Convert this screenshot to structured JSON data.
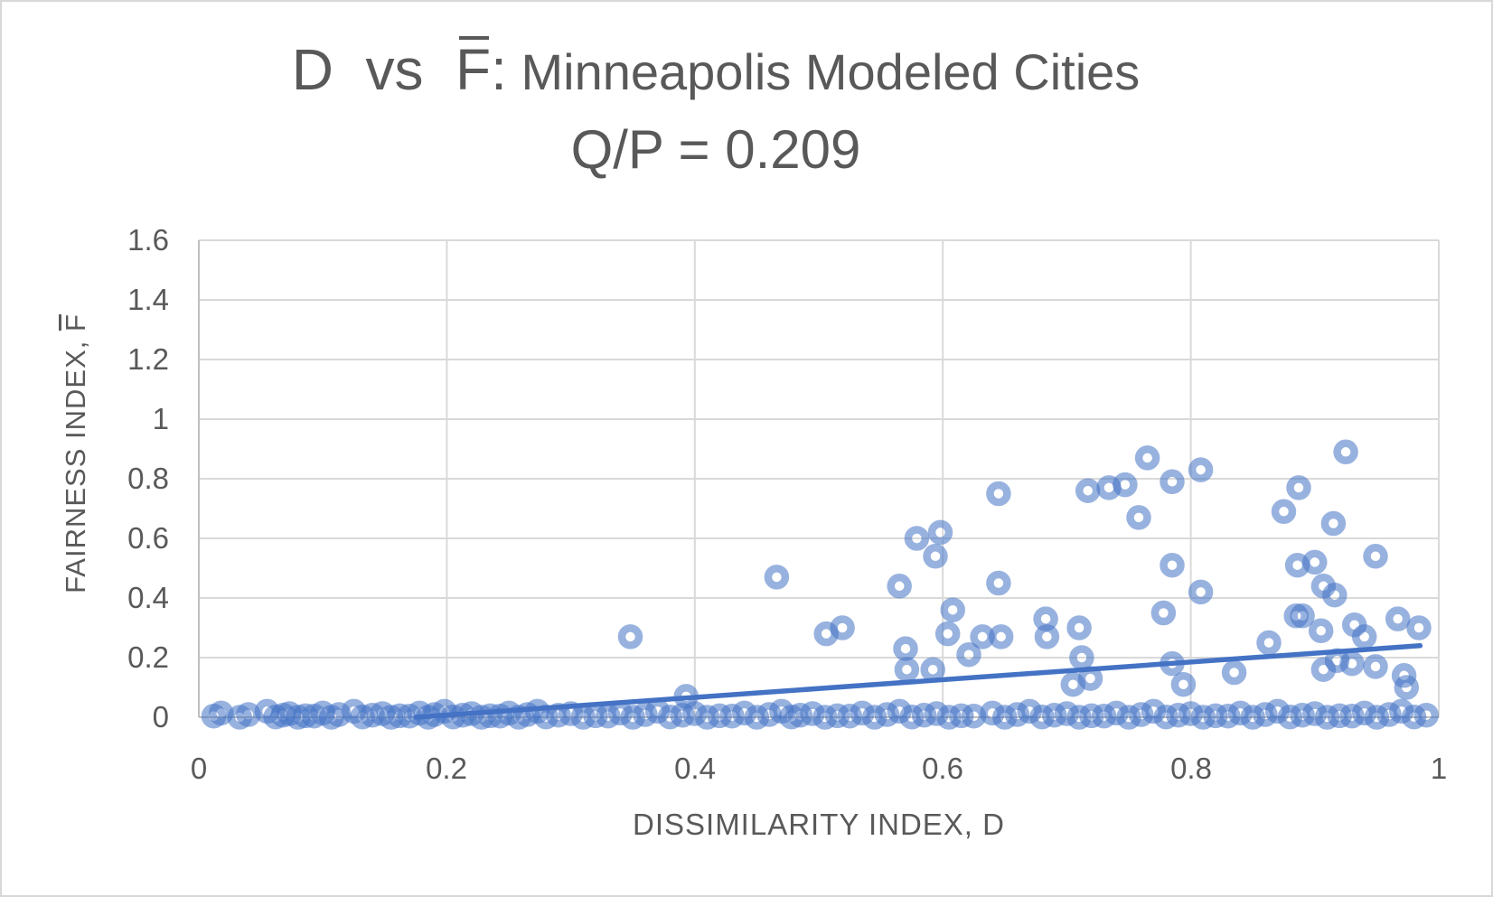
{
  "window": {
    "background": "#ffffff",
    "border_color": "#d8d8d8",
    "text_color": "#595959"
  },
  "title": {
    "line1_main": "D  vs  ",
    "line1_fbar": "F",
    "line1_colon": ":",
    "line1_rest": " Minneapolis Modeled Cities",
    "line2": "Q/P = 0.209"
  },
  "axes": {
    "x_title": "DISSIMILARITY INDEX, D",
    "y_title_prefix": "FAIRNESS INDEX, ",
    "y_title_fbar": "F",
    "x_tick_labels": [
      "0",
      "0.2",
      "0.4",
      "0.6",
      "0.8",
      "1"
    ],
    "y_tick_labels": [
      "1.6",
      "1.4",
      "1.2",
      "1",
      "0.8",
      "0.6",
      "0.4",
      "0.2",
      "0"
    ]
  },
  "chart_data": {
    "type": "scatter",
    "title": "D vs F̄: Minneapolis Modeled Cities",
    "subtitle": "Q/P = 0.209",
    "xlabel": "DISSIMILARITY INDEX, D",
    "ylabel": "FAIRNESS INDEX, F̄",
    "xlim": [
      0,
      1
    ],
    "ylim": [
      0,
      1.6
    ],
    "x_ticks": [
      0,
      0.2,
      0.4,
      0.6,
      0.8,
      1
    ],
    "y_ticks": [
      0,
      0.2,
      0.4,
      0.6,
      0.8,
      1,
      1.2,
      1.4,
      1.6
    ],
    "grid": true,
    "legend": false,
    "gridline_color": "#D9D9D9",
    "axis_line_color": "#BFBFBF",
    "marker": {
      "shape": "open-circle",
      "color": "#4472C4",
      "opacity": 0.55
    },
    "points": [
      [
        0.348,
        0.27
      ],
      [
        0.393,
        0.07
      ],
      [
        0.466,
        0.47
      ],
      [
        0.506,
        0.28
      ],
      [
        0.519,
        0.3
      ],
      [
        0.565,
        0.44
      ],
      [
        0.57,
        0.23
      ],
      [
        0.571,
        0.16
      ],
      [
        0.579,
        0.6
      ],
      [
        0.592,
        0.16
      ],
      [
        0.594,
        0.54
      ],
      [
        0.598,
        0.62
      ],
      [
        0.604,
        0.28
      ],
      [
        0.608,
        0.36
      ],
      [
        0.621,
        0.21
      ],
      [
        0.632,
        0.27
      ],
      [
        0.645,
        0.45
      ],
      [
        0.645,
        0.75
      ],
      [
        0.647,
        0.27
      ],
      [
        0.683,
        0.33
      ],
      [
        0.684,
        0.27
      ],
      [
        0.705,
        0.11
      ],
      [
        0.71,
        0.3
      ],
      [
        0.712,
        0.2
      ],
      [
        0.717,
        0.76
      ],
      [
        0.719,
        0.13
      ],
      [
        0.734,
        0.77
      ],
      [
        0.747,
        0.78
      ],
      [
        0.758,
        0.67
      ],
      [
        0.765,
        0.87
      ],
      [
        0.778,
        0.35
      ],
      [
        0.785,
        0.18
      ],
      [
        0.785,
        0.51
      ],
      [
        0.785,
        0.79
      ],
      [
        0.794,
        0.11
      ],
      [
        0.808,
        0.42
      ],
      [
        0.808,
        0.83
      ],
      [
        0.835,
        0.15
      ],
      [
        0.863,
        0.25
      ],
      [
        0.875,
        0.69
      ],
      [
        0.885,
        0.34
      ],
      [
        0.886,
        0.51
      ],
      [
        0.887,
        0.77
      ],
      [
        0.89,
        0.34
      ],
      [
        0.9,
        0.52
      ],
      [
        0.905,
        0.29
      ],
      [
        0.907,
        0.44
      ],
      [
        0.907,
        0.16
      ],
      [
        0.915,
        0.65
      ],
      [
        0.916,
        0.41
      ],
      [
        0.918,
        0.19
      ],
      [
        0.925,
        0.89
      ],
      [
        0.93,
        0.18
      ],
      [
        0.932,
        0.31
      ],
      [
        0.94,
        0.27
      ],
      [
        0.949,
        0.54
      ],
      [
        0.949,
        0.17
      ],
      [
        0.967,
        0.33
      ],
      [
        0.972,
        0.14
      ],
      [
        0.974,
        0.1
      ],
      [
        0.984,
        0.3
      ]
    ],
    "zero_band": [
      [
        0.012,
        0.004
      ],
      [
        0.018,
        0.014
      ],
      [
        0.033,
        0
      ],
      [
        0.04,
        0.009
      ],
      [
        0.055,
        0.02
      ],
      [
        0.062,
        0.001
      ],
      [
        0.068,
        0.007
      ],
      [
        0.073,
        0.012
      ],
      [
        0.08,
        0
      ],
      [
        0.086,
        0.005
      ],
      [
        0.093,
        0.004
      ],
      [
        0.1,
        0.014
      ],
      [
        0.107,
        0
      ],
      [
        0.113,
        0.009
      ],
      [
        0.125,
        0.02
      ],
      [
        0.132,
        0.001
      ],
      [
        0.14,
        0.007
      ],
      [
        0.148,
        0.012
      ],
      [
        0.155,
        0
      ],
      [
        0.162,
        0.005
      ],
      [
        0.17,
        0.004
      ],
      [
        0.178,
        0.014
      ],
      [
        0.185,
        0
      ],
      [
        0.19,
        0.009
      ],
      [
        0.198,
        0.02
      ],
      [
        0.205,
        0.001
      ],
      [
        0.213,
        0.007
      ],
      [
        0.22,
        0.012
      ],
      [
        0.228,
        0
      ],
      [
        0.235,
        0.005
      ],
      [
        0.243,
        0.004
      ],
      [
        0.25,
        0.014
      ],
      [
        0.258,
        0
      ],
      [
        0.265,
        0.009
      ],
      [
        0.273,
        0.02
      ],
      [
        0.28,
        0.001
      ],
      [
        0.29,
        0.007
      ],
      [
        0.3,
        0.012
      ],
      [
        0.31,
        0
      ],
      [
        0.32,
        0.005
      ],
      [
        0.33,
        0.004
      ],
      [
        0.34,
        0.014
      ],
      [
        0.35,
        0
      ],
      [
        0.36,
        0.009
      ],
      [
        0.37,
        0.02
      ],
      [
        0.38,
        0.001
      ],
      [
        0.39,
        0.007
      ],
      [
        0.4,
        0.012
      ],
      [
        0.41,
        0
      ],
      [
        0.42,
        0.005
      ],
      [
        0.43,
        0.004
      ],
      [
        0.44,
        0.014
      ],
      [
        0.45,
        0
      ],
      [
        0.46,
        0.009
      ],
      [
        0.47,
        0.02
      ],
      [
        0.478,
        0.001
      ],
      [
        0.485,
        0.007
      ],
      [
        0.495,
        0.012
      ],
      [
        0.505,
        0
      ],
      [
        0.515,
        0.005
      ],
      [
        0.525,
        0.004
      ],
      [
        0.535,
        0.014
      ],
      [
        0.545,
        0
      ],
      [
        0.555,
        0.009
      ],
      [
        0.565,
        0.02
      ],
      [
        0.575,
        0.001
      ],
      [
        0.585,
        0.007
      ],
      [
        0.595,
        0.012
      ],
      [
        0.605,
        0
      ],
      [
        0.615,
        0.005
      ],
      [
        0.625,
        0.004
      ],
      [
        0.64,
        0.014
      ],
      [
        0.65,
        0
      ],
      [
        0.66,
        0.009
      ],
      [
        0.67,
        0.02
      ],
      [
        0.68,
        0.001
      ],
      [
        0.69,
        0.007
      ],
      [
        0.7,
        0.012
      ],
      [
        0.71,
        0
      ],
      [
        0.72,
        0.005
      ],
      [
        0.73,
        0.004
      ],
      [
        0.74,
        0.014
      ],
      [
        0.75,
        0
      ],
      [
        0.76,
        0.009
      ],
      [
        0.77,
        0.02
      ],
      [
        0.78,
        0.001
      ],
      [
        0.79,
        0.007
      ],
      [
        0.8,
        0.012
      ],
      [
        0.81,
        0
      ],
      [
        0.82,
        0.005
      ],
      [
        0.83,
        0.004
      ],
      [
        0.84,
        0.014
      ],
      [
        0.85,
        0
      ],
      [
        0.86,
        0.009
      ],
      [
        0.87,
        0.02
      ],
      [
        0.88,
        0.001
      ],
      [
        0.89,
        0.007
      ],
      [
        0.9,
        0.012
      ],
      [
        0.91,
        0
      ],
      [
        0.92,
        0.005
      ],
      [
        0.93,
        0.004
      ],
      [
        0.94,
        0.014
      ],
      [
        0.95,
        0
      ],
      [
        0.96,
        0.009
      ],
      [
        0.97,
        0.02
      ],
      [
        0.98,
        0.001
      ],
      [
        0.99,
        0.007
      ]
    ],
    "trendline": {
      "x_start": 0.175,
      "y_start": 0.0,
      "x_end": 0.985,
      "y_end": 0.24,
      "color": "#4472C4",
      "width": 5.5
    }
  }
}
